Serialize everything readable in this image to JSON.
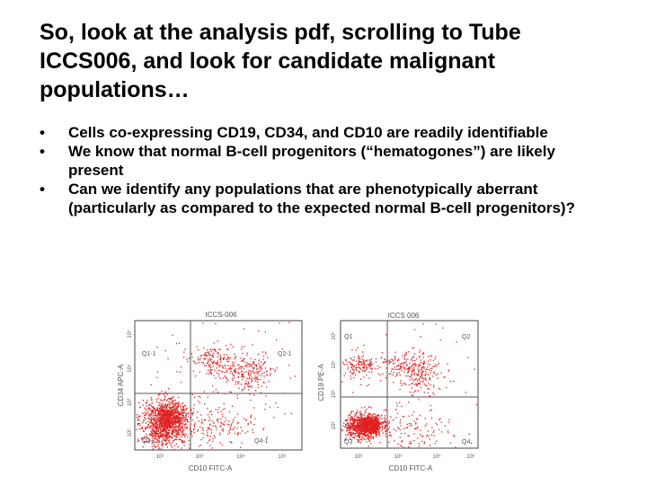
{
  "slide": {
    "title": "So, look at the analysis pdf, scrolling to Tube ICCS006, and look for candidate malignant populations…",
    "bullets": [
      "Cells co-expressing CD19, CD34, and CD10 are readily identifiable",
      "We know that normal B-cell progenitors (“hematogones”) are likely present",
      "Can we identify any populations that are phenotypically aberrant (particularly as compared to the expected normal B-cell progenitors)?"
    ]
  },
  "plots": [
    {
      "title": "ICCS-006",
      "xlabel": "CD10 FITC-A",
      "ylabel": "CD34 APC-A",
      "quadrants": [
        "Q1-1",
        "Q2-1",
        "Q3-1",
        "Q4-1"
      ],
      "x_ticks": [
        "10²",
        "10³",
        "10⁴",
        "10⁵"
      ],
      "y_ticks": [
        "10²",
        "10³",
        "10⁴",
        "10⁵"
      ],
      "dot_color": "#e02020"
    },
    {
      "title": "ICCS 006",
      "xlabel": "CD10 FITC-A",
      "ylabel": "CD19 PE-A",
      "quadrants": [
        "Q1",
        "Q2",
        "Q3",
        "Q4"
      ],
      "x_ticks": [
        "10²",
        "10³",
        "10⁴",
        "10⁵"
      ],
      "y_ticks": [
        "10²",
        "10³",
        "10⁴",
        "10⁵"
      ],
      "dot_color": "#e02020"
    }
  ]
}
